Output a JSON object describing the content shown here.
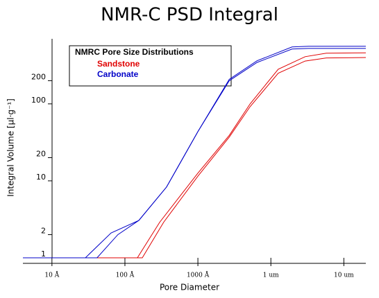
{
  "chart_data": {
    "type": "line",
    "title": "NMR-C PSD Integral",
    "x_label": "Pore Diameter",
    "y_label": "Integral Volume [µl·g⁻¹]",
    "legend_title": "NMRC Pore Size Distributions",
    "xlog": true,
    "ylog": true,
    "xlim": [
      4,
      200000
    ],
    "ylim": [
      1,
      700
    ],
    "xticks": [
      {
        "value": 10,
        "label": "10 Å"
      },
      {
        "value": 100,
        "label": "100 Å"
      },
      {
        "value": 1000,
        "label": "1000 Å"
      },
      {
        "value": 10000,
        "label": "1 um"
      },
      {
        "value": 100000,
        "label": "10 um"
      }
    ],
    "yticks": [
      1,
      2,
      10,
      20,
      100,
      200
    ],
    "series": [
      {
        "name": "Sandstone",
        "color": "#e00000",
        "curves": [
          {
            "x": [
              4,
              148,
              300,
              1000,
              2690,
              5190,
              12600,
              29500,
              57500,
              200000
            ],
            "values": [
              1,
              1,
              2.9,
              12.6,
              39,
              100,
              282,
              410,
              456,
              460
            ]
          },
          {
            "x": [
              4,
              173,
              340,
              1000,
              2690,
              5190,
              12600,
              29500,
              57500,
              200000
            ],
            "values": [
              1,
              1,
              2.9,
              11.5,
              37,
              92,
              250,
              360,
              395,
              400
            ]
          }
        ]
      },
      {
        "name": "Carbonate",
        "color": "#0000c8",
        "curves": [
          {
            "x": [
              4,
              28.7,
              64.6,
              155,
              372,
              1000,
              2690,
              6460,
              19500,
              33000,
              200000
            ],
            "values": [
              1,
              1,
              2.1,
              3.06,
              8.3,
              43.6,
              208,
              363,
              548,
              560,
              560
            ]
          },
          {
            "x": [
              4,
              41.5,
              80,
              155,
              372,
              1000,
              2690,
              6460,
              19500,
              33000,
              200000
            ],
            "values": [
              1,
              1,
              2.0,
              3.06,
              8.3,
              43.6,
              200,
              345,
              515,
              525,
              525
            ]
          }
        ]
      }
    ]
  }
}
